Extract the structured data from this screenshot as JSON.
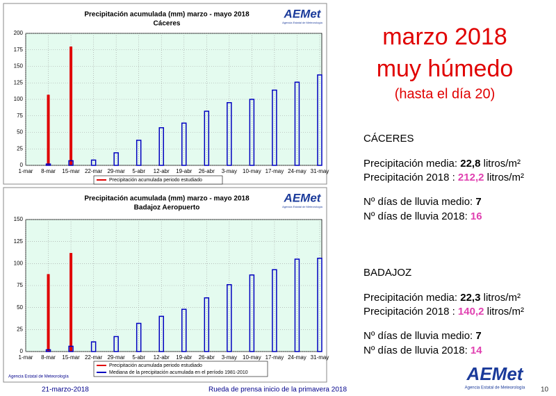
{
  "chart_data": [
    {
      "type": "bar",
      "title": "Precipitación acumulada (mm) marzo - mayo 2018",
      "subtitle": "Cáceres",
      "categories": [
        "1-mar",
        "8-mar",
        "15-mar",
        "22-mar",
        "29-mar",
        "5-abr",
        "12-abr",
        "19-abr",
        "26-abr",
        "3-may",
        "10-may",
        "17-may",
        "24-may",
        "31-may"
      ],
      "series": [
        {
          "name": "Precipitación acumulada periodo estudiado",
          "color": "#e00000",
          "values": [
            null,
            107,
            180,
            null,
            null,
            null,
            null,
            null,
            null,
            null,
            null,
            null,
            null,
            null
          ]
        },
        {
          "color": "#0000c0",
          "values": [
            null,
            2,
            7,
            8,
            19,
            38,
            57,
            64,
            82,
            95,
            100,
            114,
            126,
            137
          ]
        }
      ],
      "ylim": [
        0,
        200
      ],
      "yticks": [
        0,
        25,
        50,
        75,
        100,
        125,
        150,
        175,
        200
      ],
      "grid": true
    },
    {
      "type": "bar",
      "title": "Precipitación acumulada (mm) marzo - mayo 2018",
      "subtitle": "Badajoz Aeropuerto",
      "categories": [
        "1-mar",
        "8-mar",
        "15-mar",
        "22-mar",
        "29-mar",
        "5-abr",
        "12-abr",
        "19-abr",
        "26-abr",
        "3-may",
        "10-may",
        "17-may",
        "24-may",
        "31-may"
      ],
      "series": [
        {
          "name": "Precipitación acumulada periodo estudiado",
          "color": "#e00000",
          "values": [
            null,
            88,
            112,
            null,
            null,
            null,
            null,
            null,
            null,
            null,
            null,
            null,
            null,
            null
          ]
        },
        {
          "name": "Mediana de la precipitación acumulada en el período 1981-2010",
          "color": "#0000c0",
          "values": [
            null,
            2,
            6,
            11,
            17,
            32,
            40,
            48,
            61,
            76,
            87,
            93,
            105,
            106
          ]
        }
      ],
      "ylim": [
        0,
        150
      ],
      "yticks": [
        0,
        25,
        50,
        75,
        100,
        125,
        150
      ],
      "grid": true
    }
  ],
  "slide": {
    "logo": "AEMet",
    "logo_caption": "Agencia Estatal de Meteorología",
    "heading": [
      "marzo 2018",
      "muy húmedo"
    ],
    "subheading": "(hasta el día 20)",
    "sections": [
      {
        "name": "CÁCERES",
        "lines": [
          [
            {
              "text": "Precipitación media: ",
              "style": "plain"
            },
            {
              "text": "22,8",
              "style": "bold"
            },
            {
              "text": " litros/m²",
              "style": "plain"
            }
          ],
          [
            {
              "text": "Precipitación 2018 : ",
              "style": "plain"
            },
            {
              "text": "212,2",
              "style": "pink"
            },
            {
              "text": " litros/m²",
              "style": "plain"
            }
          ],
          [
            {
              "text": "Nº días de lluvia medio: ",
              "style": "plain"
            },
            {
              "text": "7",
              "style": "bold"
            }
          ],
          [
            {
              "text": "Nº días de lluvia 2018: ",
              "style": "plain"
            },
            {
              "text": "16",
              "style": "pink"
            }
          ]
        ]
      },
      {
        "name": "BADAJOZ",
        "lines": [
          [
            {
              "text": "Precipitación media: ",
              "style": "plain"
            },
            {
              "text": "22,3",
              "style": "bold"
            },
            {
              "text": " litros/m²",
              "style": "plain"
            }
          ],
          [
            {
              "text": "Precipitación 2018 : ",
              "style": "plain"
            },
            {
              "text": "140,2",
              "style": "pink"
            },
            {
              "text": " litros/m²",
              "style": "plain"
            }
          ],
          [
            {
              "text": "Nº días de lluvia medio: ",
              "style": "plain"
            },
            {
              "text": "7",
              "style": "bold"
            }
          ],
          [
            {
              "text": "Nº días de lluvia 2018: ",
              "style": "plain"
            },
            {
              "text": "14",
              "style": "pink"
            }
          ]
        ]
      }
    ],
    "footer": {
      "date": "21-marzo-2018",
      "event": "Rueda de prensa inicio de la primavera 2018",
      "page": "10"
    }
  }
}
